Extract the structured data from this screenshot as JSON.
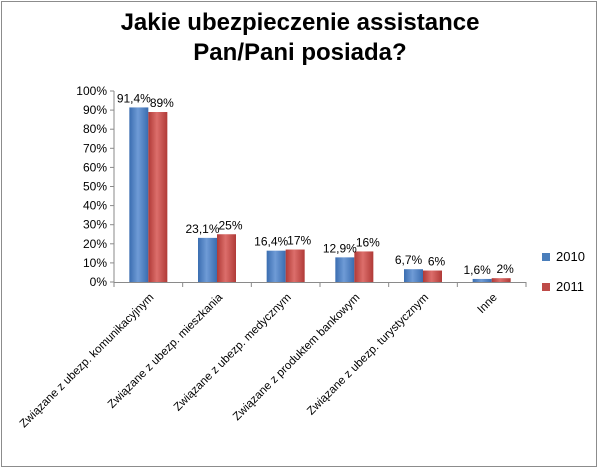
{
  "chart_data": {
    "type": "bar",
    "title_line1": "Jakie ubezpieczenie assistance",
    "title_line2": "Pan/Pani posiada?",
    "categories": [
      "Związane z ubezp. komunikacyjnym",
      "Związane z ubezp. mieszkania",
      "Związane z ubezp. medycznym",
      "Związane z produktem bankowym",
      "Związane z ubezp. turystycznym",
      "Inne"
    ],
    "series": [
      {
        "name": "2010",
        "color": "#4a7ebb",
        "values": [
          91.4,
          23.1,
          16.4,
          12.9,
          6.7,
          1.6
        ],
        "labels": [
          "91,4%",
          "23,1%",
          "16,4%",
          "12,9%",
          "6,7%",
          "1,6%"
        ]
      },
      {
        "name": "2011",
        "color": "#be4b48",
        "values": [
          89,
          25,
          17,
          16,
          6,
          2
        ],
        "labels": [
          "89%",
          "25%",
          "17%",
          "16%",
          "6%",
          "2%"
        ]
      }
    ],
    "ylim": [
      0,
      100
    ],
    "yticks": [
      "0%",
      "10%",
      "20%",
      "30%",
      "40%",
      "50%",
      "60%",
      "70%",
      "80%",
      "90%",
      "100%"
    ],
    "legend": "right"
  }
}
